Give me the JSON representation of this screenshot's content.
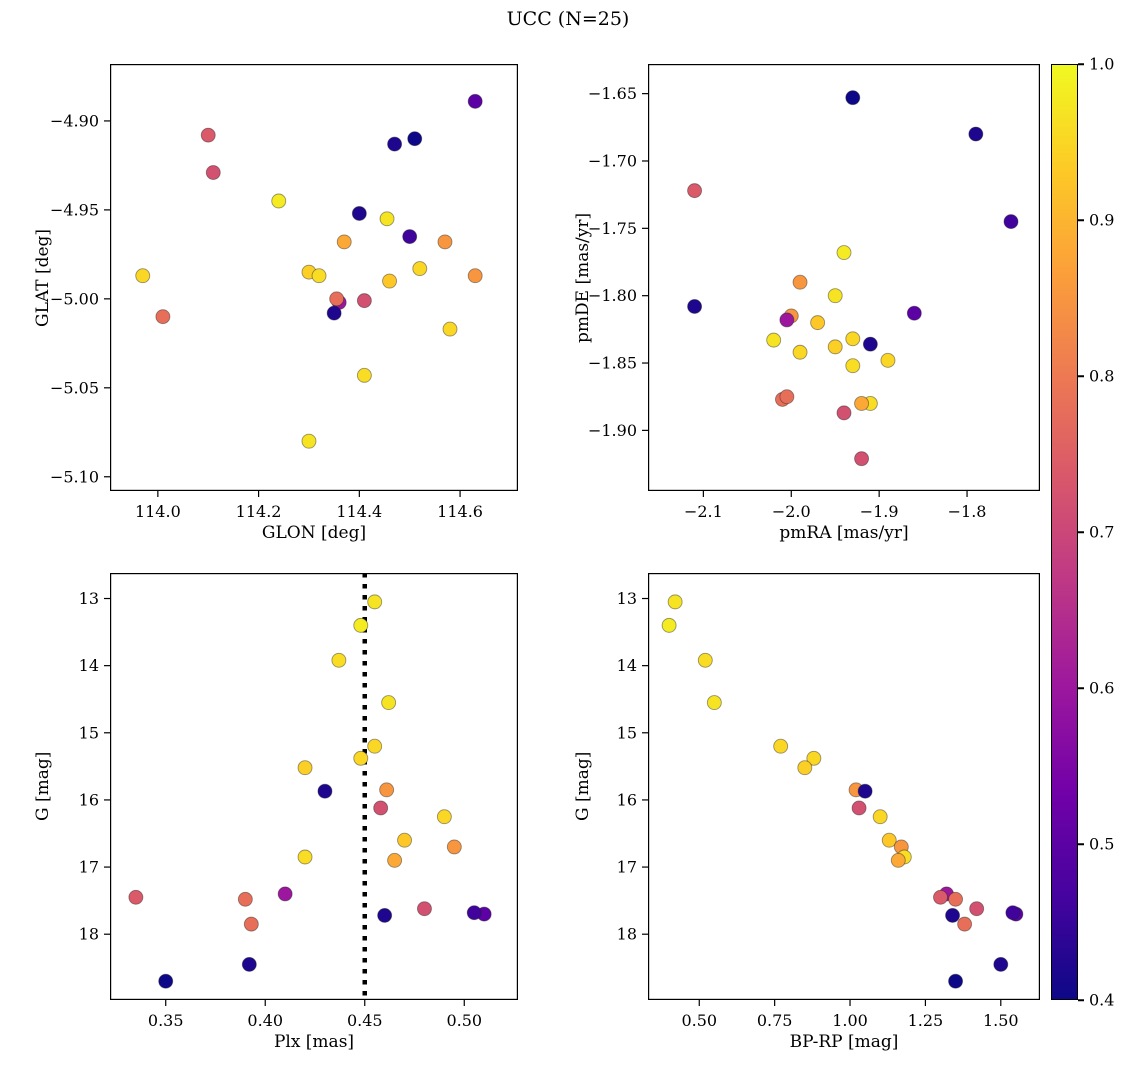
{
  "title": "UCC (N=25)",
  "colorbar": {
    "min": 0.4,
    "max": 1.0,
    "ticks": [
      0.4,
      0.5,
      0.6,
      0.7,
      0.8,
      0.9,
      1.0
    ],
    "tick_labels": [
      "0.4",
      "0.5",
      "0.6",
      "0.7",
      "0.8",
      "0.9",
      "1.0"
    ]
  },
  "chart_data": {
    "type": "scatter",
    "title": "UCC (N=25)",
    "n_members": 25,
    "color_variable": "membership_probability",
    "colormap": "plasma",
    "color_min": 0.4,
    "color_max": 1.0,
    "colormap_stops": [
      "#0d0887",
      "#46039f",
      "#7201a8",
      "#9c179e",
      "#bd3786",
      "#d8576b",
      "#ed7953",
      "#fb9f3a",
      "#fdca26",
      "#f0f921"
    ],
    "panels": [
      {
        "id": "glon-glat",
        "xlabel": "GLON [deg]",
        "ylabel": "GLAT [deg]",
        "xkey": "glon",
        "ykey": "glat",
        "xlim": [
          113.905,
          114.715
        ],
        "ylim": [
          -4.868,
          -5.108
        ],
        "xticks": [
          114.0,
          114.2,
          114.4,
          114.6
        ],
        "xtick_labels": [
          "114.0",
          "114.2",
          "114.4",
          "114.6"
        ],
        "yticks": [
          -4.9,
          -4.95,
          -5.0,
          -5.05,
          -5.1
        ],
        "ytick_labels": [
          "−4.90",
          "−4.95",
          "−5.00",
          "−5.05",
          "−5.10"
        ]
      },
      {
        "id": "pmra-pmde",
        "xlabel": "pmRA [mas/yr]",
        "ylabel": "pmDE [mas/yr]",
        "xkey": "pmra",
        "ykey": "pmde",
        "xlim": [
          -2.163,
          -1.717
        ],
        "ylim": [
          -1.628,
          -1.945
        ],
        "xticks": [
          -2.1,
          -2.0,
          -1.9,
          -1.8
        ],
        "xtick_labels": [
          "−2.1",
          "−2.0",
          "−1.9",
          "−1.8"
        ],
        "yticks": [
          -1.65,
          -1.7,
          -1.75,
          -1.8,
          -1.85,
          -1.9
        ],
        "ytick_labels": [
          "−1.65",
          "−1.70",
          "−1.75",
          "−1.80",
          "−1.85",
          "−1.90"
        ]
      },
      {
        "id": "plx-g",
        "xlabel": "Plx [mas]",
        "ylabel": "G [mag]",
        "xkey": "plx",
        "ykey": "g",
        "xlim": [
          0.322,
          0.527
        ],
        "ylim": [
          12.62,
          18.98
        ],
        "xticks": [
          0.35,
          0.4,
          0.45,
          0.5
        ],
        "xtick_labels": [
          "0.35",
          "0.40",
          "0.45",
          "0.50"
        ],
        "yticks": [
          13,
          14,
          15,
          16,
          17,
          18
        ],
        "ytick_labels": [
          "13",
          "14",
          "15",
          "16",
          "17",
          "18"
        ],
        "vline": {
          "x": 0.45,
          "style": "dotted",
          "color": "#000000"
        }
      },
      {
        "id": "cmd",
        "xlabel": "BP-RP [mag]",
        "ylabel": "G [mag]",
        "xkey": "bprp",
        "ykey": "g",
        "xlim": [
          0.33,
          1.63
        ],
        "ylim": [
          12.62,
          18.98
        ],
        "xticks": [
          0.5,
          0.75,
          1.0,
          1.25,
          1.5
        ],
        "xtick_labels": [
          "0.50",
          "0.75",
          "1.00",
          "1.25",
          "1.50"
        ],
        "yticks": [
          13,
          14,
          15,
          16,
          17,
          18
        ],
        "ytick_labels": [
          "13",
          "14",
          "15",
          "16",
          "17",
          "18"
        ]
      }
    ],
    "stars": [
      {
        "glon": 114.455,
        "glat": -4.955,
        "pmra": -1.95,
        "pmde": -1.8,
        "plx": 0.455,
        "g": 13.05,
        "bprp": 0.42,
        "prob": 0.97
      },
      {
        "glon": 114.24,
        "glat": -4.945,
        "pmra": -1.94,
        "pmde": -1.768,
        "plx": 0.448,
        "g": 13.4,
        "bprp": 0.4,
        "prob": 0.98
      },
      {
        "glon": 114.41,
        "glat": -5.043,
        "pmra": -1.93,
        "pmde": -1.852,
        "plx": 0.437,
        "g": 13.92,
        "bprp": 0.52,
        "prob": 0.96
      },
      {
        "glon": 114.3,
        "glat": -5.08,
        "pmra": -2.02,
        "pmde": -1.833,
        "plx": 0.462,
        "g": 14.55,
        "bprp": 0.55,
        "prob": 0.97
      },
      {
        "glon": 113.97,
        "glat": -4.987,
        "pmra": -1.93,
        "pmde": -1.832,
        "plx": 0.455,
        "g": 15.2,
        "bprp": 0.77,
        "prob": 0.95
      },
      {
        "glon": 114.58,
        "glat": -5.017,
        "pmra": -1.99,
        "pmde": -1.842,
        "plx": 0.448,
        "g": 15.38,
        "bprp": 0.88,
        "prob": 0.95
      },
      {
        "glon": 114.3,
        "glat": -4.985,
        "pmra": -1.95,
        "pmde": -1.838,
        "plx": 0.42,
        "g": 15.52,
        "bprp": 0.85,
        "prob": 0.94
      },
      {
        "glon": 114.57,
        "glat": -4.968,
        "pmra": -1.99,
        "pmde": -1.79,
        "plx": 0.461,
        "g": 15.85,
        "bprp": 1.02,
        "prob": 0.85
      },
      {
        "glon": 114.4,
        "glat": -4.952,
        "pmra": -1.91,
        "pmde": -1.836,
        "plx": 0.43,
        "g": 15.87,
        "bprp": 1.05,
        "prob": 0.42
      },
      {
        "glon": 114.41,
        "glat": -5.001,
        "pmra": -1.94,
        "pmde": -1.887,
        "plx": 0.458,
        "g": 16.12,
        "bprp": 1.03,
        "prob": 0.72
      },
      {
        "glon": 114.52,
        "glat": -4.983,
        "pmra": -1.89,
        "pmde": -1.848,
        "plx": 0.49,
        "g": 16.25,
        "bprp": 1.1,
        "prob": 0.95
      },
      {
        "glon": 114.46,
        "glat": -4.99,
        "pmra": -1.97,
        "pmde": -1.82,
        "plx": 0.47,
        "g": 16.6,
        "bprp": 1.13,
        "prob": 0.93
      },
      {
        "glon": 114.63,
        "glat": -4.987,
        "pmra": -2.0,
        "pmde": -1.815,
        "plx": 0.495,
        "g": 16.7,
        "bprp": 1.17,
        "prob": 0.85
      },
      {
        "glon": 114.32,
        "glat": -4.987,
        "pmra": -1.91,
        "pmde": -1.88,
        "plx": 0.42,
        "g": 16.85,
        "bprp": 1.18,
        "prob": 0.96
      },
      {
        "glon": 114.37,
        "glat": -4.968,
        "pmra": -1.92,
        "pmde": -1.88,
        "plx": 0.465,
        "g": 16.9,
        "bprp": 1.16,
        "prob": 0.88
      },
      {
        "glon": 114.36,
        "glat": -5.002,
        "pmra": -2.005,
        "pmde": -1.818,
        "plx": 0.41,
        "g": 17.4,
        "bprp": 1.32,
        "prob": 0.6
      },
      {
        "glon": 114.1,
        "glat": -4.908,
        "pmra": -2.11,
        "pmde": -1.722,
        "plx": 0.335,
        "g": 17.45,
        "bprp": 1.3,
        "prob": 0.74
      },
      {
        "glon": 114.01,
        "glat": -5.01,
        "pmra": -2.01,
        "pmde": -1.877,
        "plx": 0.39,
        "g": 17.48,
        "bprp": 1.35,
        "prob": 0.78
      },
      {
        "glon": 114.11,
        "glat": -4.929,
        "pmra": -1.92,
        "pmde": -1.921,
        "plx": 0.48,
        "g": 17.62,
        "bprp": 1.42,
        "prob": 0.72
      },
      {
        "glon": 114.63,
        "glat": -4.889,
        "pmra": -1.86,
        "pmde": -1.813,
        "plx": 0.51,
        "g": 17.7,
        "bprp": 1.55,
        "prob": 0.5
      },
      {
        "glon": 114.35,
        "glat": -5.008,
        "pmra": -2.11,
        "pmde": -1.808,
        "plx": 0.46,
        "g": 17.72,
        "bprp": 1.34,
        "prob": 0.42
      },
      {
        "glon": 114.355,
        "glat": -5.0,
        "pmra": -2.005,
        "pmde": -1.875,
        "plx": 0.393,
        "g": 17.85,
        "bprp": 1.38,
        "prob": 0.78
      },
      {
        "glon": 114.47,
        "glat": -4.913,
        "pmra": -1.79,
        "pmde": -1.68,
        "plx": 0.392,
        "g": 18.45,
        "bprp": 1.5,
        "prob": 0.42
      },
      {
        "glon": 114.51,
        "glat": -4.91,
        "pmra": -1.93,
        "pmde": -1.653,
        "plx": 0.35,
        "g": 18.7,
        "bprp": 1.35,
        "prob": 0.4
      },
      {
        "glon": 114.5,
        "glat": -4.965,
        "pmra": -1.75,
        "pmde": -1.745,
        "plx": 0.505,
        "g": 17.68,
        "bprp": 1.54,
        "prob": 0.46
      }
    ]
  }
}
